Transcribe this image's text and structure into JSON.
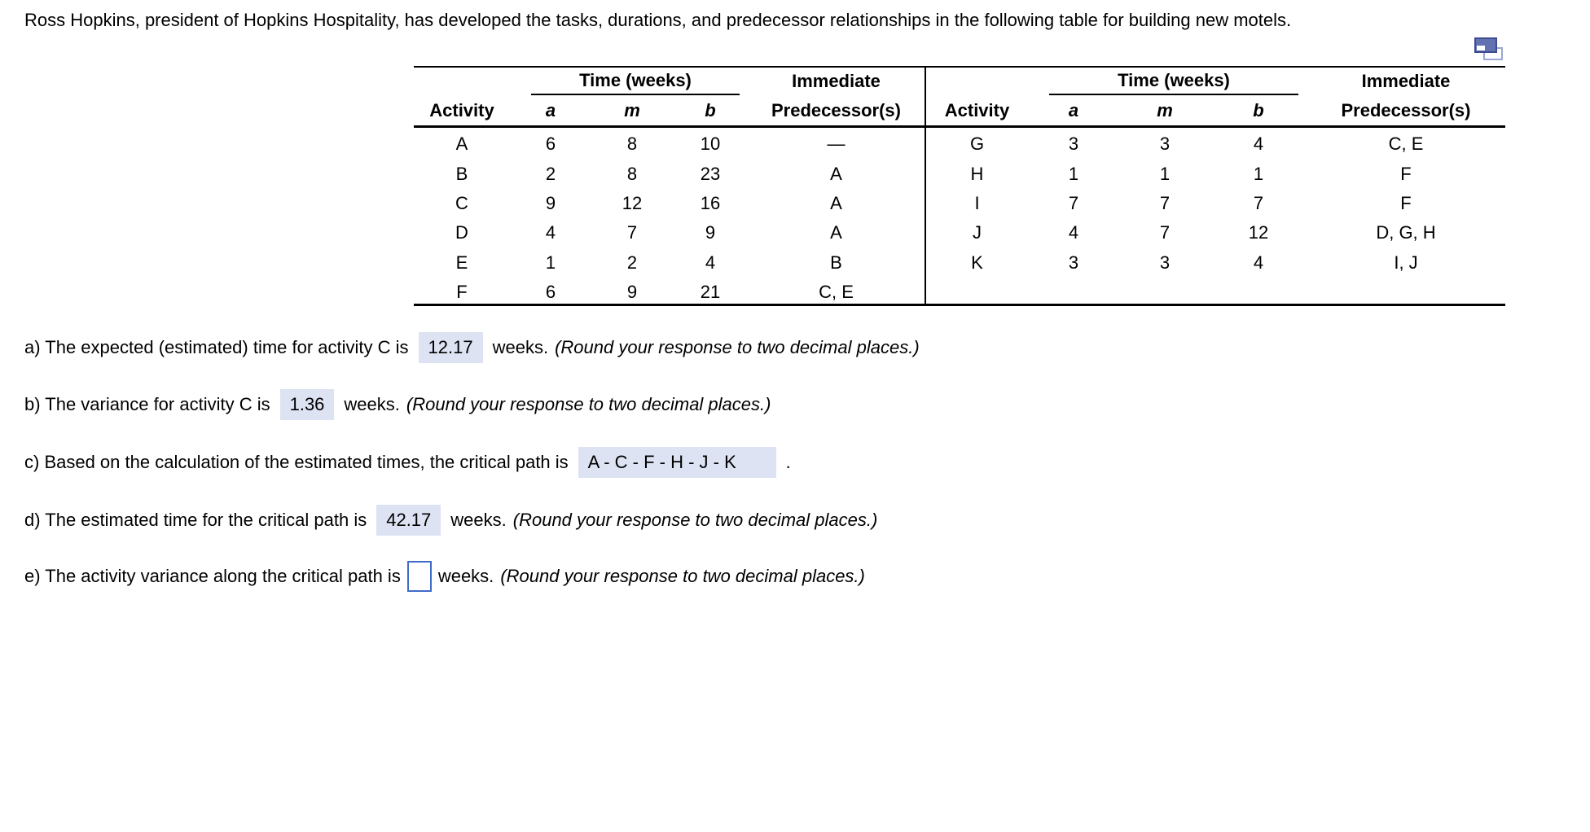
{
  "title": "Ross Hopkins, president of Hopkins Hospitality, has developed the tasks, durations, and predecessor relationships in the following table for building new motels.",
  "table": {
    "headers": {
      "activity": "Activity",
      "time_group": "Time (weeks)",
      "a": "a",
      "m": "m",
      "b": "b",
      "immediate_line1": "Immediate",
      "immediate_line2": "Predecessor(s)"
    },
    "left": {
      "rows": [
        [
          "A",
          "6",
          "8",
          "10",
          "—"
        ],
        [
          "B",
          "2",
          "8",
          "23",
          "A"
        ],
        [
          "C",
          "9",
          "12",
          "16",
          "A"
        ],
        [
          "D",
          "4",
          "7",
          "9",
          "A"
        ],
        [
          "E",
          "1",
          "2",
          "4",
          "B"
        ],
        [
          "F",
          "6",
          "9",
          "21",
          "C, E"
        ]
      ]
    },
    "right": {
      "rows": [
        [
          "G",
          "3",
          "3",
          "4",
          "C, E"
        ],
        [
          "H",
          "1",
          "1",
          "1",
          "F"
        ],
        [
          "I",
          "7",
          "7",
          "7",
          "F"
        ],
        [
          "J",
          "4",
          "7",
          "12",
          "D, G, H"
        ],
        [
          "K",
          "3",
          "3",
          "4",
          "I, J"
        ]
      ]
    }
  },
  "questions": [
    {
      "prefix": "a) The expected (estimated) time for activity C is",
      "answer": "12.17",
      "suffix": "weeks.",
      "note": "(Round your response to two decimal places.)"
    },
    {
      "prefix": "b) The variance for activity C is",
      "answer": "1.36",
      "suffix": "weeks.",
      "note": "(Round your response to two decimal places.)"
    },
    {
      "prefix": "c) Based on the calculation of the estimated times, the critical path is",
      "answer": "A - C - F - H - J - K",
      "suffix": ".",
      "note": ""
    },
    {
      "prefix": "d) The estimated time for the critical path is",
      "answer": "42.17",
      "suffix": "weeks.",
      "note": "(Round your response to two decimal places.)"
    },
    {
      "prefix": "e) The activity variance along the critical path is",
      "answer": "",
      "suffix": "weeks.",
      "note": "(Round your response to two decimal places.)"
    }
  ],
  "colors": {
    "answer_highlight": "#dde3f2",
    "input_border": "#3f6cc8",
    "icon_dark": "#3e4b92",
    "icon_light": "#9aa7d2"
  }
}
